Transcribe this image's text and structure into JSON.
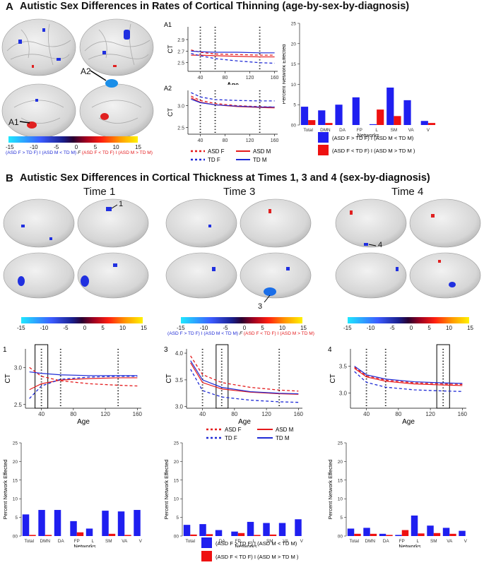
{
  "panelA": {
    "letter": "A",
    "title": "Autistic Sex Differences in Rates of Cortical Thinning (age-by-sex-by-diagnosis)",
    "callouts": [
      "A2",
      "A1"
    ],
    "colorbar": {
      "ticks": [
        "-15",
        "-10",
        "-5",
        "0",
        "5",
        "10",
        "15"
      ],
      "legend_left": "(ASD F > TD F) I (ASD M < TD M)",
      "legend_mid": "F",
      "legend_right": "(ASD F < TD F) I (ASD M > TD M)"
    },
    "line_legend": {
      "items": [
        {
          "label": "ASD F",
          "color": "#e41a1c",
          "dash": true
        },
        {
          "label": "ASD M",
          "color": "#e41a1c",
          "dash": false
        },
        {
          "label": "TD F",
          "color": "#1f2bd6",
          "dash": true
        },
        {
          "label": "TD M",
          "color": "#1f2bd6",
          "dash": false
        }
      ]
    }
  },
  "panelB": {
    "letter": "B",
    "title": "Autistic Sex Differences in Cortical Thickness at Times 1, 3 and 4 (sex-by-diagnosis)",
    "times": [
      "Time 1",
      "Time 3",
      "Time 4"
    ],
    "callouts": [
      "1",
      "3",
      "4"
    ],
    "colorbar_ticks": [
      "-15",
      "-10",
      "-5",
      "0",
      "5",
      "10",
      "15"
    ],
    "legend_left": "(ASD F > TD F) I (ASD M < TD M)",
    "legend_mid": "F",
    "legend_right": "(ASD F < TD F) I (ASD M > TD M)",
    "bar_legend": {
      "blue_label": "(ASD F > TD F) I (ASD M < TD M)",
      "red_label": "(ASD F < TD F) I (ASD M > TD M )"
    }
  },
  "colors": {
    "blue": "#1f1ff0",
    "red": "#ee1111",
    "asd": "#e41a1c",
    "td": "#1f2bd6"
  },
  "chart_data": [
    {
      "id": "A1",
      "type": "line",
      "title": "A1",
      "xlabel": "Age",
      "ylabel": "CT",
      "xticks": [
        40,
        80,
        120,
        160
      ],
      "yticks": [
        2.5,
        2.7,
        2.9
      ],
      "ylim": [
        2.35,
        3.12
      ],
      "xlim": [
        20,
        165
      ],
      "vlines": [
        40,
        64,
        136
      ],
      "series": [
        {
          "name": "ASD F",
          "x": [
            25,
            40,
            64,
            100,
            136,
            160
          ],
          "values": [
            2.72,
            2.68,
            2.65,
            2.64,
            2.63,
            2.63
          ]
        },
        {
          "name": "ASD M",
          "x": [
            25,
            40,
            64,
            100,
            136,
            160
          ],
          "values": [
            2.63,
            2.63,
            2.62,
            2.61,
            2.6,
            2.6
          ]
        },
        {
          "name": "TD F",
          "x": [
            25,
            40,
            64,
            100,
            136,
            160
          ],
          "values": [
            2.66,
            2.62,
            2.57,
            2.53,
            2.5,
            2.49
          ]
        },
        {
          "name": "TD M",
          "x": [
            25,
            40,
            64,
            100,
            136,
            160
          ],
          "values": [
            2.7,
            2.69,
            2.68,
            2.68,
            2.67,
            2.67
          ]
        }
      ]
    },
    {
      "id": "A2",
      "type": "line",
      "title": "A2",
      "xlabel": "",
      "ylabel": "CT",
      "xticks": [
        40,
        80,
        120,
        160
      ],
      "yticks": [
        2.5,
        3.0
      ],
      "ylim": [
        2.35,
        3.35
      ],
      "xlim": [
        20,
        165
      ],
      "vlines": [
        40,
        64,
        136
      ],
      "series": [
        {
          "name": "ASD F",
          "x": [
            25,
            40,
            64,
            100,
            136,
            160
          ],
          "values": [
            3.22,
            3.12,
            3.05,
            3.0,
            2.98,
            2.97
          ]
        },
        {
          "name": "ASD M",
          "x": [
            25,
            40,
            64,
            100,
            136,
            160
          ],
          "values": [
            3.18,
            3.08,
            3.02,
            2.98,
            2.96,
            2.95
          ]
        },
        {
          "name": "TD F",
          "x": [
            25,
            40,
            64,
            100,
            136,
            160
          ],
          "values": [
            3.3,
            3.2,
            3.14,
            3.12,
            3.11,
            3.11
          ]
        },
        {
          "name": "TD M",
          "x": [
            25,
            40,
            64,
            100,
            136,
            160
          ],
          "values": [
            3.15,
            3.07,
            3.02,
            2.99,
            2.97,
            2.97
          ]
        }
      ]
    },
    {
      "id": "A-bar",
      "type": "bar",
      "xlabel": "Networks",
      "ylabel": "Percent Network Effected",
      "categories": [
        "Total",
        "DMN",
        "DA",
        "FP",
        "L",
        "SM",
        "VA",
        "V"
      ],
      "yticks": [
        0,
        5,
        10,
        15,
        20,
        25
      ],
      "ylim": [
        0,
        25
      ],
      "series": [
        {
          "name": "(ASD F > TD F) I (ASD M < TD M)",
          "values": [
            4.5,
            3.6,
            5.0,
            6.8,
            0.2,
            9.2,
            6.1,
            1.0
          ]
        },
        {
          "name": "(ASD F < TD F) I (ASD M > TD M )",
          "values": [
            1.2,
            0.5,
            0,
            0,
            3.8,
            2.2,
            0,
            0.5
          ]
        }
      ]
    },
    {
      "id": "B1",
      "type": "line",
      "title": "1",
      "xlabel": "Age",
      "ylabel": "CT",
      "xticks": [
        40,
        80,
        120,
        160
      ],
      "yticks": [
        2.5,
        3.0
      ],
      "ylim": [
        2.45,
        3.25
      ],
      "xlim": [
        20,
        165
      ],
      "vlines": [
        40,
        64,
        136
      ],
      "highlight": [
        32,
        48
      ],
      "series": [
        {
          "name": "ASD F",
          "x": [
            25,
            40,
            64,
            100,
            136,
            160
          ],
          "values": [
            3.0,
            2.88,
            2.82,
            2.78,
            2.76,
            2.75
          ]
        },
        {
          "name": "ASD M",
          "x": [
            25,
            40,
            64,
            100,
            136,
            160
          ],
          "values": [
            2.7,
            2.78,
            2.83,
            2.85,
            2.86,
            2.86
          ]
        },
        {
          "name": "TD F",
          "x": [
            25,
            40,
            64,
            100,
            136,
            160
          ],
          "values": [
            2.58,
            2.75,
            2.84,
            2.87,
            2.88,
            2.88
          ]
        },
        {
          "name": "TD M",
          "x": [
            25,
            40,
            64,
            100,
            136,
            160
          ],
          "values": [
            2.94,
            2.92,
            2.9,
            2.89,
            2.89,
            2.89
          ]
        }
      ]
    },
    {
      "id": "B3",
      "type": "line",
      "title": "3",
      "xlabel": "Age",
      "ylabel": "CT",
      "xticks": [
        40,
        80,
        120,
        160
      ],
      "yticks": [
        3.0,
        3.5,
        4.0
      ],
      "ylim": [
        2.97,
        4.08
      ],
      "xlim": [
        20,
        165
      ],
      "vlines": [
        40,
        64,
        136
      ],
      "highlight": [
        57,
        72
      ],
      "series": [
        {
          "name": "ASD F",
          "x": [
            25,
            40,
            64,
            100,
            136,
            160
          ],
          "values": [
            3.95,
            3.6,
            3.45,
            3.36,
            3.31,
            3.29
          ]
        },
        {
          "name": "ASD M",
          "x": [
            25,
            40,
            64,
            100,
            136,
            160
          ],
          "values": [
            3.82,
            3.45,
            3.33,
            3.27,
            3.24,
            3.23
          ]
        },
        {
          "name": "TD F",
          "x": [
            25,
            40,
            64,
            100,
            136,
            160
          ],
          "values": [
            3.7,
            3.3,
            3.18,
            3.12,
            3.09,
            3.08
          ]
        },
        {
          "name": "TD M",
          "x": [
            25,
            40,
            64,
            100,
            136,
            160
          ],
          "values": [
            3.86,
            3.5,
            3.36,
            3.28,
            3.25,
            3.24
          ]
        }
      ]
    },
    {
      "id": "B4",
      "type": "line",
      "title": "4",
      "xlabel": "Age",
      "ylabel": "CT",
      "xticks": [
        40,
        80,
        120,
        160
      ],
      "yticks": [
        3.0,
        3.5
      ],
      "ylim": [
        2.72,
        3.82
      ],
      "xlim": [
        20,
        165
      ],
      "vlines": [
        40,
        64,
        136
      ],
      "highlight": [
        128,
        144
      ],
      "series": [
        {
          "name": "ASD F",
          "x": [
            25,
            40,
            64,
            100,
            136,
            160
          ],
          "values": [
            3.48,
            3.32,
            3.24,
            3.19,
            3.17,
            3.16
          ]
        },
        {
          "name": "ASD M",
          "x": [
            25,
            40,
            64,
            100,
            136,
            160
          ],
          "values": [
            3.46,
            3.3,
            3.22,
            3.17,
            3.15,
            3.14
          ]
        },
        {
          "name": "TD F",
          "x": [
            25,
            40,
            64,
            100,
            136,
            160
          ],
          "values": [
            3.4,
            3.2,
            3.11,
            3.06,
            3.04,
            3.03
          ]
        },
        {
          "name": "TD M",
          "x": [
            25,
            40,
            64,
            100,
            136,
            160
          ],
          "values": [
            3.5,
            3.34,
            3.26,
            3.21,
            3.19,
            3.18
          ]
        }
      ]
    },
    {
      "id": "B1-bar",
      "type": "bar",
      "xlabel": "Networks",
      "ylabel": "Percent Network Effected",
      "categories": [
        "Total",
        "DMN",
        "DA",
        "FP",
        "L",
        "SM",
        "VA",
        "V"
      ],
      "yticks": [
        0,
        5,
        10,
        15,
        20,
        25
      ],
      "ylim": [
        0,
        25
      ],
      "series": [
        {
          "name": "(ASD F > TD F) I (ASD M < TD M)",
          "values": [
            5.8,
            7.0,
            7.0,
            4.0,
            2.0,
            6.8,
            6.6,
            7.0
          ]
        },
        {
          "name": "(ASD F < TD F) I (ASD M > TD M )",
          "values": [
            0.3,
            0.3,
            0,
            1.0,
            0,
            0.6,
            0.3,
            0
          ]
        }
      ]
    },
    {
      "id": "B3-bar",
      "type": "bar",
      "xlabel": "Networks",
      "ylabel": "Percent Network Effected",
      "categories": [
        "Total",
        "DMN",
        "DA",
        "FP",
        "L",
        "SM",
        "VA",
        "V"
      ],
      "yticks": [
        0,
        5,
        10,
        15,
        20,
        25
      ],
      "ylim": [
        0,
        25
      ],
      "series": [
        {
          "name": "(ASD F > TD F) I (ASD M < TD M)",
          "values": [
            3.0,
            3.2,
            1.6,
            1.2,
            3.8,
            3.5,
            3.5,
            4.5
          ]
        },
        {
          "name": "(ASD F < TD F) I (ASD M > TD M )",
          "values": [
            0.4,
            0.5,
            0,
            0.8,
            0.3,
            0.4,
            0,
            0
          ]
        }
      ]
    },
    {
      "id": "B4-bar",
      "type": "bar",
      "xlabel": "Networks",
      "ylabel": "Percent Network Effected",
      "categories": [
        "Total",
        "DMN",
        "DA",
        "FP",
        "L",
        "SM",
        "VA",
        "V"
      ],
      "yticks": [
        0,
        5,
        10,
        15,
        20,
        25
      ],
      "ylim": [
        0,
        25
      ],
      "series": [
        {
          "name": "(ASD F > TD F) I (ASD M < TD M)",
          "values": [
            2.0,
            2.2,
            0.6,
            0.3,
            5.5,
            2.8,
            2.2,
            1.4
          ]
        },
        {
          "name": "(ASD F < TD F) I (ASD M > TD M )",
          "values": [
            0.6,
            0.6,
            0.3,
            1.6,
            0.7,
            0.8,
            0.6,
            0
          ]
        }
      ]
    }
  ]
}
